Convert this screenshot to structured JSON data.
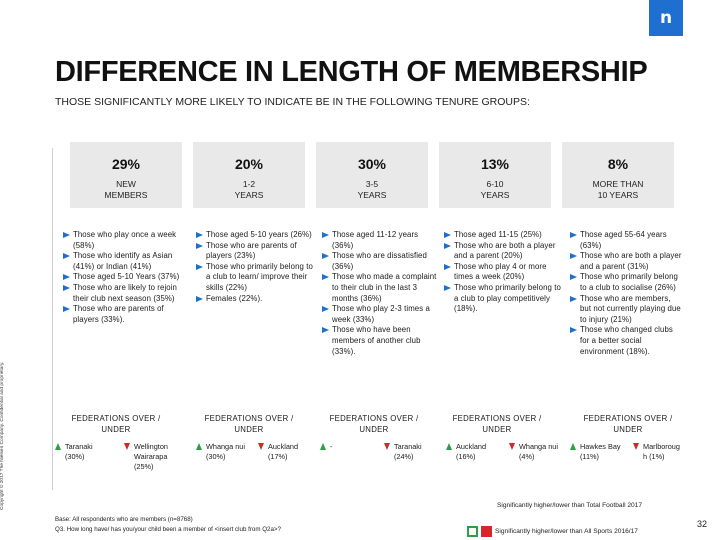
{
  "logo": {
    "letter": "n"
  },
  "title": "DIFFERENCE IN LENGTH OF MEMBERSHIP",
  "subtitle": "THOSE SIGNIFICANTLY MORE LIKELY TO INDICATE BE IN THE FOLLOWING TENURE GROUPS:",
  "copyright": "Copyright © 2017 The Nielsen Company. Confidential and proprietary.",
  "columns": [
    {
      "pct": "29%",
      "group": "NEW\nMEMBERS",
      "bullets": [
        "Those who play once a week (58%)",
        "Those who identify as Asian (41%) or Indian (41%)",
        "Those aged 5-10 Years (37%)",
        "Those who are likely to rejoin their club next season (35%)",
        "Those who are parents of players (33%)."
      ],
      "fed_head": "FEDERATIONS OVER / UNDER",
      "fed_up": "Taranaki (30%)",
      "fed_down": "Wellington Wairarapa (25%)"
    },
    {
      "pct": "20%",
      "group": "1-2\nYEARS",
      "bullets": [
        "Those aged 5-10 years (26%)",
        "Those who are parents of players (23%)",
        "Those who primarily belong to a club to learn/ improve their skills (22%)",
        "Females (22%)."
      ],
      "fed_head": "FEDERATIONS OVER / UNDER",
      "fed_up": "Whanga nui (30%)",
      "fed_down": "Auckland (17%)"
    },
    {
      "pct": "30%",
      "group": "3-5\nYEARS",
      "bullets": [
        "Those aged 11-12 years (36%)",
        "Those who are dissatisfied (36%)",
        "Those who made a complaint to their club in the last 3 months (36%)",
        "Those who play 2-3 times a week (33%)",
        "Those who have been members of another club (33%)."
      ],
      "fed_head": "FEDERATIONS OVER / UNDER",
      "fed_up": "-",
      "fed_down": "Taranaki (24%)"
    },
    {
      "pct": "13%",
      "group": "6-10\nYEARS",
      "bullets": [
        "Those aged 11-15 (25%)",
        "Those who are both a player and a parent (20%)",
        "Those who play 4 or more times a week (20%)",
        "Those who primarily belong to a club to play competitively (18%)."
      ],
      "fed_head": "FEDERATIONS OVER / UNDER",
      "fed_up": "Auckland (16%)",
      "fed_down": "Whanga nui (4%)"
    },
    {
      "pct": "8%",
      "group": "MORE THAN\n10 YEARS",
      "bullets": [
        "Those aged 55-64 years (63%)",
        "Those who are both a player and a parent (31%)",
        "Those who primarily belong to a club to socialise (26%)",
        "Those who are members, but not currently playing due to injury (21%)",
        "Those who changed clubs for a better social environment (18%)."
      ],
      "fed_head": "FEDERATIONS OVER / UNDER",
      "fed_up": "Hawkes Bay (11%)",
      "fed_down": "Marlboroug h (1%)"
    }
  ],
  "footer": {
    "base": "Base: All respondents who are members (n=8768)",
    "question": "Q3. How long have/ has you/your child been a member of <insert club from Q2a>?",
    "legend_total": "Significantly higher/lower than Total Football 2017",
    "legend_sports": "Significantly higher/lower than All Sports 2016/17",
    "page_number": "32"
  },
  "colors": {
    "accent": "#1f6fd1",
    "up": "#2e9e43",
    "down": "#d7262a",
    "panel": "#e9e9e9"
  }
}
